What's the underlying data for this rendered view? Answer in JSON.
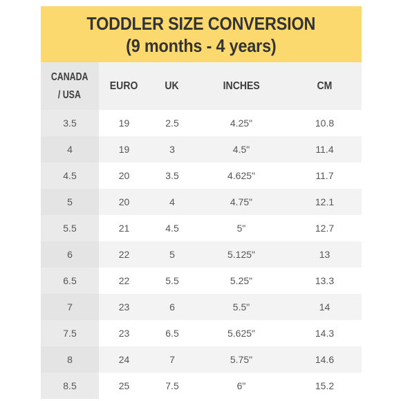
{
  "title": {
    "line1": "TODDLER SIZE CONVERSION",
    "line2": "(9 months - 4 years)"
  },
  "headers": {
    "canada_usa_line1": "CANADA",
    "canada_usa_line2": "/ USA",
    "euro": "EURO",
    "uk": "UK",
    "inches": "INCHES",
    "cm": "CM"
  },
  "rows": [
    {
      "canada_usa": "3.5",
      "euro": "19",
      "uk": "2.5",
      "inches": "4.25\"",
      "cm": "10.8"
    },
    {
      "canada_usa": "4",
      "euro": "19",
      "uk": "3",
      "inches": "4.5\"",
      "cm": "11.4"
    },
    {
      "canada_usa": "4.5",
      "euro": "20",
      "uk": "3.5",
      "inches": "4.625\"",
      "cm": "11.7"
    },
    {
      "canada_usa": "5",
      "euro": "20",
      "uk": "4",
      "inches": "4.75\"",
      "cm": "12.1"
    },
    {
      "canada_usa": "5.5",
      "euro": "21",
      "uk": "4.5",
      "inches": "5\"",
      "cm": "12.7"
    },
    {
      "canada_usa": "6",
      "euro": "22",
      "uk": "5",
      "inches": "5.125\"",
      "cm": "13"
    },
    {
      "canada_usa": "6.5",
      "euro": "22",
      "uk": "5.5",
      "inches": "5.25\"",
      "cm": "13.3"
    },
    {
      "canada_usa": "7",
      "euro": "23",
      "uk": "6",
      "inches": "5.5\"",
      "cm": "14"
    },
    {
      "canada_usa": "7.5",
      "euro": "23",
      "uk": "6.5",
      "inches": "5.625\"",
      "cm": "14.3"
    },
    {
      "canada_usa": "8",
      "euro": "24",
      "uk": "7",
      "inches": "5.75\"",
      "cm": "14.6"
    },
    {
      "canada_usa": "8.5",
      "euro": "25",
      "uk": "7.5",
      "inches": "6\"",
      "cm": "15.2"
    }
  ],
  "colors": {
    "header_background": "#fbd96e",
    "label_column_background": "#ebebeb",
    "text": "#555555"
  }
}
